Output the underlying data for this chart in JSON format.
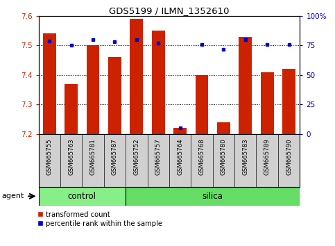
{
  "title": "GDS5199 / ILMN_1352610",
  "samples": [
    "GSM665755",
    "GSM665763",
    "GSM665781",
    "GSM665787",
    "GSM665752",
    "GSM665757",
    "GSM665764",
    "GSM665768",
    "GSM665780",
    "GSM665783",
    "GSM665789",
    "GSM665790"
  ],
  "red_values": [
    7.54,
    7.37,
    7.5,
    7.46,
    7.59,
    7.55,
    7.22,
    7.4,
    7.24,
    7.53,
    7.41,
    7.42
  ],
  "blue_values": [
    79,
    75,
    80,
    78,
    80,
    77,
    5,
    76,
    72,
    80,
    76,
    76
  ],
  "control_count": 4,
  "silica_count": 8,
  "ylim_left": [
    7.2,
    7.6
  ],
  "ylim_right": [
    0,
    100
  ],
  "yticks_left": [
    7.2,
    7.3,
    7.4,
    7.5,
    7.6
  ],
  "yticks_right": [
    0,
    25,
    50,
    75,
    100
  ],
  "ytick_labels_right": [
    "0",
    "25",
    "50",
    "75",
    "100%"
  ],
  "bar_color": "#cc2200",
  "dot_color": "#0000cc",
  "control_color": "#88ee88",
  "silica_color": "#66dd66",
  "agent_label": "agent",
  "control_label": "control",
  "silica_label": "silica",
  "legend_red": "transformed count",
  "legend_blue": "percentile rank within the sample",
  "bar_width": 0.6,
  "label_bg": "#d0d0d0"
}
